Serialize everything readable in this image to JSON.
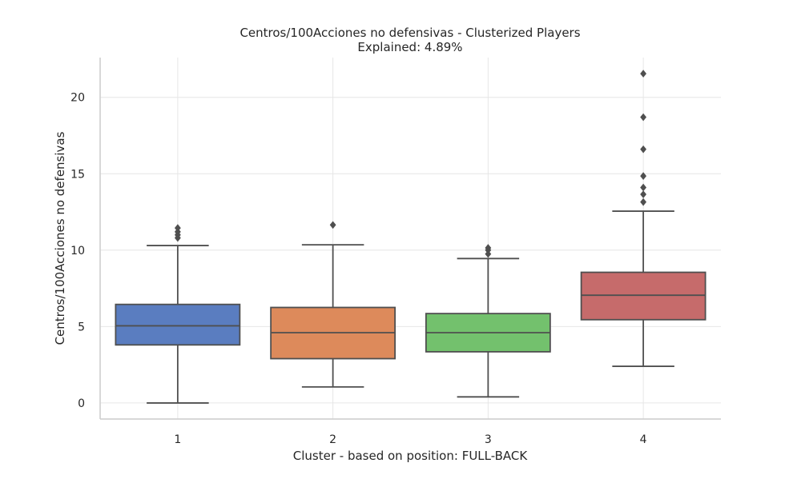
{
  "chart_data": {
    "type": "box",
    "title": "Centros/100Acciones no defensivas - Clusterized Players",
    "subtitle": "Explained: 4.89%",
    "xlabel": "Cluster - based on position: FULL-BACK",
    "ylabel": "Centros/100Acciones no defensivas",
    "categories": [
      "1",
      "2",
      "3",
      "4"
    ],
    "yticks": [
      0,
      5,
      10,
      15,
      20
    ],
    "ytick_labels": [
      "0",
      "5",
      "10",
      "15",
      "20"
    ],
    "ylim": [
      -1.05,
      22.6
    ],
    "grid": true,
    "legend": "none",
    "boxes": [
      {
        "category": "1",
        "whisker_low": 0.0,
        "q1": 3.8,
        "median": 5.05,
        "q3": 6.45,
        "whisker_high": 10.3,
        "outliers": [
          10.8,
          11.0,
          11.2,
          11.45
        ],
        "color": "#5a7dc0"
      },
      {
        "category": "2",
        "whisker_low": 1.05,
        "q1": 2.9,
        "median": 4.6,
        "q3": 6.25,
        "whisker_high": 10.35,
        "outliers": [
          11.65
        ],
        "color": "#dd8a5b"
      },
      {
        "category": "3",
        "whisker_low": 0.4,
        "q1": 3.35,
        "median": 4.6,
        "q3": 5.85,
        "whisker_high": 9.45,
        "outliers": [
          9.75,
          10.0,
          10.15
        ],
        "color": "#73c16d"
      },
      {
        "category": "4",
        "whisker_low": 2.4,
        "q1": 5.45,
        "median": 7.05,
        "q3": 8.55,
        "whisker_high": 12.55,
        "outliers": [
          13.15,
          13.65,
          14.1,
          14.85,
          16.6,
          18.7,
          21.55
        ],
        "color": "#c66b6b"
      }
    ],
    "line_color": "#4f4f4f",
    "grid_color": "#e6e6e6",
    "spine_color": "#cccccc"
  }
}
